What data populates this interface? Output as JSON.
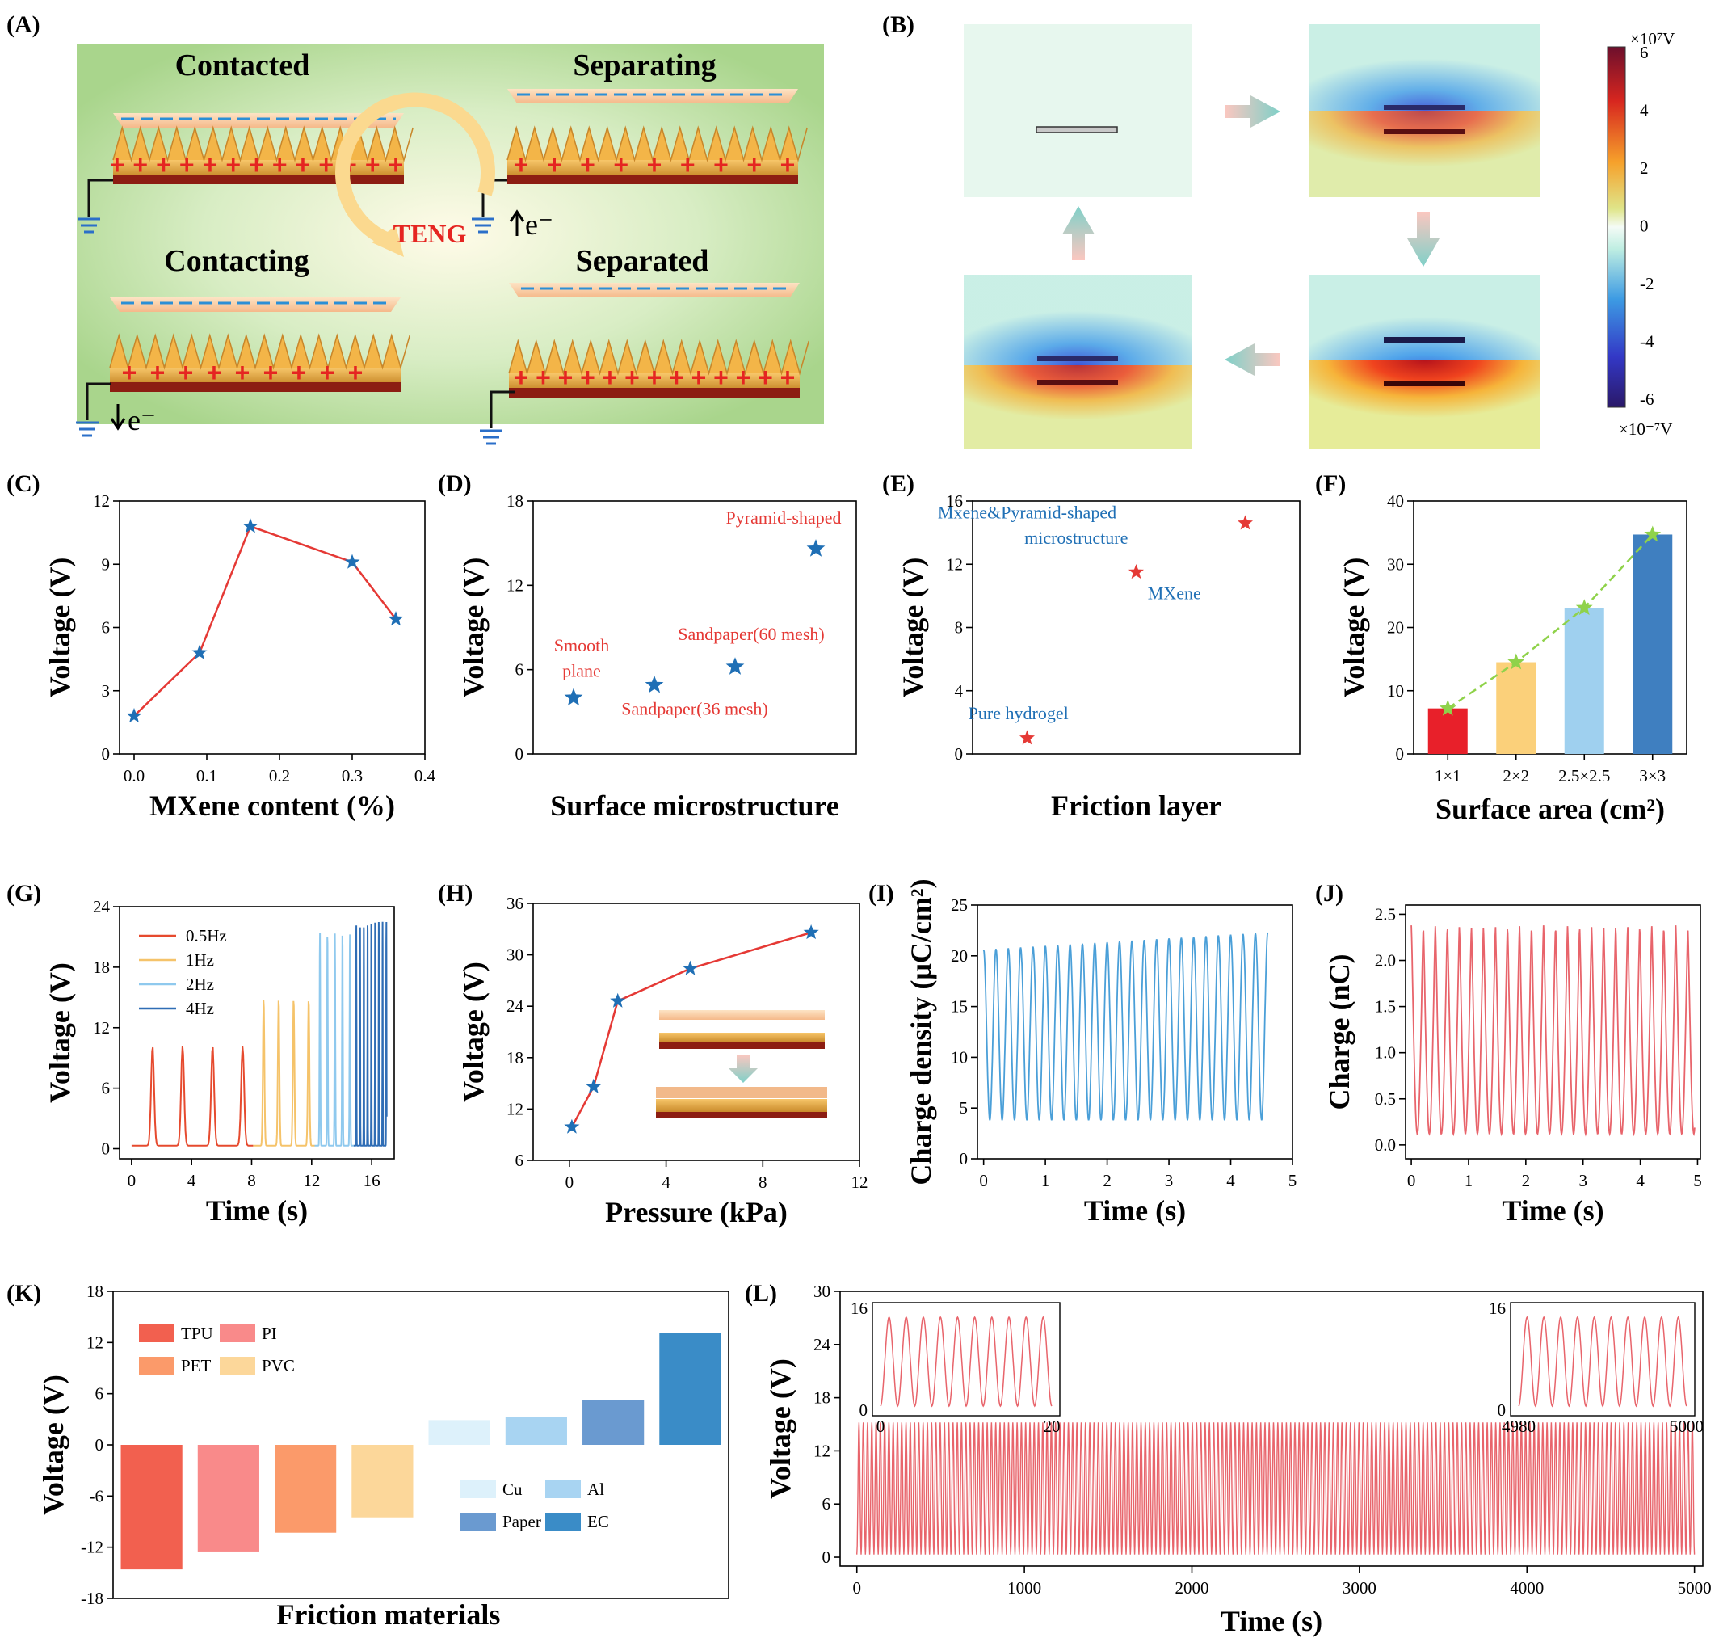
{
  "figure": {
    "panel_labels": [
      "(A)",
      "(B)",
      "(C)",
      "(D)",
      "(E)",
      "(F)",
      "(G)",
      "(H)",
      "(I)",
      "(J)",
      "(K)",
      "(L)"
    ]
  },
  "schematic_a": {
    "stages": [
      "Contacted",
      "Separating",
      "Contacting",
      "Separated"
    ],
    "center_label": "TENG",
    "electron": "e⁻"
  },
  "simulation_b": {
    "colorbar_top_unit": "×10⁷V",
    "colorbar_bottom_unit": "×10⁻⁷V",
    "colorbar_ticks": [
      "6",
      "4",
      "2",
      "0",
      "-2",
      "-4",
      "-6"
    ]
  },
  "chart_data": [
    {
      "id": "C",
      "type": "line",
      "xlabel": "MXene content (%)",
      "ylabel": "Voltage (V)",
      "x": [
        0.0,
        0.09,
        0.16,
        0.3,
        0.36
      ],
      "y": [
        1.8,
        4.8,
        10.8,
        9.1,
        6.4
      ],
      "xlim": [
        -0.02,
        0.4
      ],
      "ylim": [
        0,
        12
      ],
      "xticks": [
        "0.0",
        "0.1",
        "0.2",
        "0.3",
        "0.4"
      ],
      "xtick_values": [
        0,
        0.1,
        0.2,
        0.3,
        0.4
      ],
      "yticks": [
        "0",
        "3",
        "6",
        "9",
        "12"
      ],
      "ytick_values": [
        0,
        3,
        6,
        9,
        12
      ],
      "line_color": "#e53935",
      "marker_color": "#1f6fb5"
    },
    {
      "id": "D",
      "type": "scatter",
      "xlabel": "Surface microstructure",
      "ylabel": "Voltage (V)",
      "x": [
        1,
        2,
        3,
        4
      ],
      "y": [
        4.0,
        4.9,
        6.2,
        14.6
      ],
      "xlim": [
        0.5,
        4.5
      ],
      "ylim": [
        0,
        18
      ],
      "yticks": [
        "0",
        "6",
        "12",
        "18"
      ],
      "ytick_values": [
        0,
        6,
        12,
        18
      ],
      "annotations": [
        {
          "text": "Smooth",
          "x": 1.1,
          "y": 7.3
        },
        {
          "text": "plane",
          "x": 1.1,
          "y": 5.5
        },
        {
          "text": "Sandpaper(36 mesh)",
          "x": 2.5,
          "y": 2.8
        },
        {
          "text": "Sandpaper(60 mesh)",
          "x": 3.2,
          "y": 8.1
        },
        {
          "text": "Pyramid-shaped",
          "x": 3.6,
          "y": 16.4
        }
      ],
      "marker_color": "#1f6fb5",
      "ann_color": "#e53935"
    },
    {
      "id": "E",
      "type": "scatter",
      "xlabel": "Friction layer",
      "ylabel": "Voltage (V)",
      "x": [
        1,
        2,
        3
      ],
      "y": [
        1.0,
        11.5,
        14.6
      ],
      "xlim": [
        0.5,
        3.5
      ],
      "ylim": [
        0,
        16
      ],
      "yticks": [
        "0",
        "4",
        "8",
        "12",
        "16"
      ],
      "ytick_values": [
        0,
        4,
        8,
        12,
        16
      ],
      "annotations": [
        {
          "text": "Pure hydrogel",
          "x": 0.92,
          "y": 2.2
        },
        {
          "text": "MXene",
          "x": 2.35,
          "y": 9.8
        },
        {
          "text": "Mxene&Pyramid-shaped",
          "x": 1.0,
          "y": 14.9
        },
        {
          "text": "microstructure",
          "x": 1.45,
          "y": 13.3
        }
      ],
      "marker_color": "#e53935",
      "ann_color": "#1f6fb5"
    },
    {
      "id": "F",
      "type": "bar",
      "xlabel": "Surface area (cm²)",
      "ylabel": "Voltage (V)",
      "categories": [
        "1×1",
        "2×2",
        "2.5×2.5",
        "3×3"
      ],
      "values": [
        7.2,
        14.5,
        23.1,
        34.7
      ],
      "ylim": [
        0,
        40
      ],
      "yticks": [
        "0",
        "10",
        "20",
        "30",
        "40"
      ],
      "ytick_values": [
        0,
        10,
        20,
        30,
        40
      ],
      "bar_colors": [
        "#e8202a",
        "#fbd07a",
        "#9fd0ef",
        "#3f7fc0"
      ],
      "trend_color": "#8fd24a"
    },
    {
      "id": "G",
      "type": "line",
      "xlabel": "Time (s)",
      "ylabel": "Voltage (V)",
      "xlim": [
        -0.8,
        17.5
      ],
      "ylim": [
        -1,
        24
      ],
      "xticks": [
        "0",
        "4",
        "8",
        "12",
        "16"
      ],
      "xtick_values": [
        0,
        4,
        8,
        12,
        16
      ],
      "yticks": [
        "0",
        "6",
        "12",
        "18",
        "24"
      ],
      "ytick_values": [
        0,
        6,
        12,
        18,
        24
      ],
      "series": [
        {
          "name": "0.5Hz",
          "color": "#e64a2e",
          "start": 0.0,
          "end": 8.1,
          "period": 2.0,
          "peak": 9.9
        },
        {
          "name": "1Hz",
          "color": "#f5c36a",
          "start": 8.1,
          "end": 12.2,
          "period": 1.0,
          "peak": 14.6
        },
        {
          "name": "2Hz",
          "color": "#8fc9ee",
          "start": 12.2,
          "end": 14.8,
          "period": 0.5,
          "peak": 21.1
        },
        {
          "name": "4Hz",
          "color": "#2f6db5",
          "start": 14.8,
          "end": 17.0,
          "period": 0.25,
          "peak": 22.2
        }
      ]
    },
    {
      "id": "H",
      "type": "line",
      "xlabel": "Pressure (kPa)",
      "ylabel": "Voltage (V)",
      "x": [
        0.1,
        1.0,
        2.0,
        5.0,
        10.0
      ],
      "y": [
        9.9,
        14.6,
        24.6,
        28.4,
        32.6
      ],
      "xlim": [
        -1.5,
        12
      ],
      "ylim": [
        6,
        36
      ],
      "xticks": [
        "0",
        "4",
        "8",
        "12"
      ],
      "xtick_values": [
        0,
        4,
        8,
        12
      ],
      "yticks": [
        "6",
        "12",
        "18",
        "24",
        "30",
        "36"
      ],
      "ytick_values": [
        6,
        12,
        18,
        24,
        30,
        36
      ],
      "line_color": "#e53935",
      "marker_color": "#1f6fb5"
    },
    {
      "id": "I",
      "type": "line",
      "xlabel": "Time (s)",
      "ylabel": "Charge density (μC/cm²)",
      "xlim": [
        -0.1,
        5
      ],
      "ylim": [
        0,
        25
      ],
      "xticks": [
        "0",
        "1",
        "2",
        "3",
        "4",
        "5"
      ],
      "xtick_values": [
        0,
        1,
        2,
        3,
        4,
        5
      ],
      "yticks": [
        "0",
        "5",
        "10",
        "15",
        "20",
        "25"
      ],
      "ytick_values": [
        0,
        5,
        10,
        15,
        20,
        25
      ],
      "signal": {
        "start": 0.0,
        "end": 4.6,
        "period": 0.2,
        "min": 3.8,
        "max_start": 20.6,
        "max_end": 22.3
      },
      "line_color": "#4a9fd8"
    },
    {
      "id": "J",
      "type": "line",
      "xlabel": "Time (s)",
      "ylabel": "Charge (nC)",
      "xlim": [
        -0.1,
        5.05
      ],
      "ylim": [
        -0.15,
        2.6
      ],
      "xticks": [
        "0",
        "1",
        "2",
        "3",
        "4",
        "5"
      ],
      "xtick_values": [
        0,
        1,
        2,
        3,
        4,
        5
      ],
      "yticks": [
        "0.0",
        "0.5",
        "1.0",
        "1.5",
        "2.0",
        "2.5"
      ],
      "ytick_values": [
        0,
        0.5,
        1,
        1.5,
        2,
        2.5
      ],
      "signal": {
        "start": 0.0,
        "end": 4.95,
        "period": 0.21,
        "min": 0.12,
        "max": 2.38
      },
      "line_color": "#e8646b"
    },
    {
      "id": "K",
      "type": "bar",
      "xlabel": "Friction materials",
      "ylabel": "Voltage (V)",
      "categories": [
        "TPU",
        "PI",
        "PET",
        "PVC",
        "Cu",
        "Al",
        "Paper",
        "EC"
      ],
      "values": [
        -14.6,
        -12.5,
        -10.3,
        -8.5,
        2.9,
        3.3,
        5.3,
        13.1
      ],
      "ylim": [
        -18,
        18
      ],
      "yticks": [
        "-18",
        "-12",
        "-6",
        "0",
        "6",
        "12",
        "18"
      ],
      "ytick_values": [
        -18,
        -12,
        -6,
        0,
        6,
        12,
        18
      ],
      "bar_colors": [
        "#f2604f",
        "#f98a8a",
        "#fb9a6a",
        "#fcd79a",
        "#ddf1fb",
        "#a8d4f2",
        "#6a9ad0",
        "#3a8cc7"
      ]
    },
    {
      "id": "L",
      "type": "line",
      "xlabel": "Time (s)",
      "ylabel": "Voltage (V)",
      "xlim": [
        -100,
        5050
      ],
      "ylim": [
        -1,
        30
      ],
      "xticks": [
        "0",
        "1000",
        "2000",
        "3000",
        "4000",
        "5000"
      ],
      "xtick_values": [
        0,
        1000,
        2000,
        3000,
        4000,
        5000
      ],
      "yticks": [
        "0",
        "6",
        "12",
        "18",
        "24",
        "30"
      ],
      "ytick_values": [
        0,
        6,
        12,
        18,
        24,
        30
      ],
      "signal": {
        "start": 0,
        "end": 5000,
        "min": 0.3,
        "max": 15.2
      },
      "line_color": "#e8646b",
      "insets": [
        {
          "xticks": [
            "0",
            "20"
          ],
          "ytop": "16",
          "ybottom": "0"
        },
        {
          "xticks": [
            "4980",
            "5000"
          ],
          "ytop": "16",
          "ybottom": "0"
        }
      ]
    }
  ]
}
